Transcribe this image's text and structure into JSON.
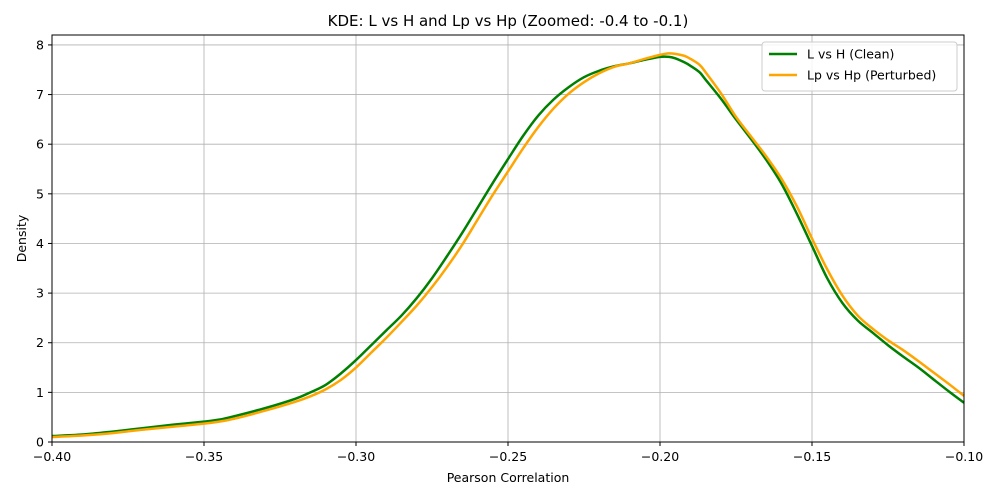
{
  "chart_data": {
    "type": "line",
    "title": "KDE: L vs H and Lp vs Hp (Zoomed: -0.4 to -0.1)",
    "xlabel": "Pearson Correlation",
    "ylabel": "Density",
    "xlim": [
      -0.4,
      -0.1
    ],
    "ylim": [
      0,
      8.2
    ],
    "x_ticks": [
      -0.4,
      -0.35,
      -0.3,
      -0.25,
      -0.2,
      -0.15,
      -0.1
    ],
    "x_tick_labels": [
      "−0.40",
      "−0.35",
      "−0.30",
      "−0.25",
      "−0.20",
      "−0.15",
      "−0.10"
    ],
    "y_ticks": [
      0,
      1,
      2,
      3,
      4,
      5,
      6,
      7,
      8
    ],
    "y_tick_labels": [
      "0",
      "1",
      "2",
      "3",
      "4",
      "5",
      "6",
      "7",
      "8"
    ],
    "grid": true,
    "legend_position": "top-right",
    "series": [
      {
        "name": "L vs H (Clean)",
        "color": "#008000",
        "x": [
          -0.4,
          -0.39,
          -0.38,
          -0.37,
          -0.36,
          -0.35,
          -0.345,
          -0.34,
          -0.33,
          -0.32,
          -0.315,
          -0.31,
          -0.305,
          -0.3,
          -0.295,
          -0.29,
          -0.285,
          -0.28,
          -0.275,
          -0.27,
          -0.265,
          -0.26,
          -0.255,
          -0.25,
          -0.245,
          -0.24,
          -0.235,
          -0.23,
          -0.225,
          -0.22,
          -0.215,
          -0.21,
          -0.205,
          -0.2,
          -0.197,
          -0.195,
          -0.192,
          -0.19,
          -0.187,
          -0.185,
          -0.18,
          -0.175,
          -0.17,
          -0.165,
          -0.16,
          -0.155,
          -0.15,
          -0.145,
          -0.14,
          -0.135,
          -0.13,
          -0.125,
          -0.12,
          -0.115,
          -0.11,
          -0.105,
          -0.1
        ],
        "y": [
          0.12,
          0.15,
          0.21,
          0.28,
          0.35,
          0.41,
          0.45,
          0.52,
          0.68,
          0.87,
          1.0,
          1.15,
          1.38,
          1.65,
          1.95,
          2.25,
          2.55,
          2.9,
          3.3,
          3.75,
          4.22,
          4.72,
          5.22,
          5.7,
          6.17,
          6.58,
          6.9,
          7.15,
          7.35,
          7.48,
          7.57,
          7.63,
          7.7,
          7.76,
          7.76,
          7.73,
          7.65,
          7.58,
          7.45,
          7.3,
          6.92,
          6.5,
          6.1,
          5.68,
          5.2,
          4.6,
          3.95,
          3.3,
          2.8,
          2.45,
          2.2,
          1.95,
          1.72,
          1.5,
          1.26,
          1.02,
          0.79
        ]
      },
      {
        "name": "Lp vs Hp (Perturbed)",
        "color": "#FFA500",
        "x": [
          -0.4,
          -0.39,
          -0.38,
          -0.37,
          -0.36,
          -0.35,
          -0.345,
          -0.34,
          -0.33,
          -0.32,
          -0.315,
          -0.31,
          -0.305,
          -0.3,
          -0.295,
          -0.29,
          -0.285,
          -0.28,
          -0.275,
          -0.27,
          -0.265,
          -0.26,
          -0.255,
          -0.25,
          -0.245,
          -0.24,
          -0.235,
          -0.23,
          -0.225,
          -0.22,
          -0.215,
          -0.21,
          -0.205,
          -0.2,
          -0.197,
          -0.195,
          -0.192,
          -0.19,
          -0.187,
          -0.185,
          -0.18,
          -0.175,
          -0.17,
          -0.165,
          -0.16,
          -0.155,
          -0.15,
          -0.145,
          -0.14,
          -0.135,
          -0.13,
          -0.125,
          -0.12,
          -0.115,
          -0.11,
          -0.105,
          -0.1
        ],
        "y": [
          0.1,
          0.13,
          0.18,
          0.25,
          0.31,
          0.37,
          0.41,
          0.47,
          0.63,
          0.81,
          0.92,
          1.06,
          1.25,
          1.5,
          1.8,
          2.1,
          2.42,
          2.75,
          3.12,
          3.53,
          3.98,
          4.48,
          4.98,
          5.45,
          5.92,
          6.35,
          6.72,
          7.02,
          7.25,
          7.43,
          7.56,
          7.63,
          7.72,
          7.8,
          7.83,
          7.82,
          7.78,
          7.72,
          7.6,
          7.45,
          7.03,
          6.55,
          6.15,
          5.75,
          5.3,
          4.75,
          4.1,
          3.48,
          2.95,
          2.55,
          2.28,
          2.05,
          1.85,
          1.63,
          1.4,
          1.17,
          0.93
        ]
      }
    ]
  }
}
